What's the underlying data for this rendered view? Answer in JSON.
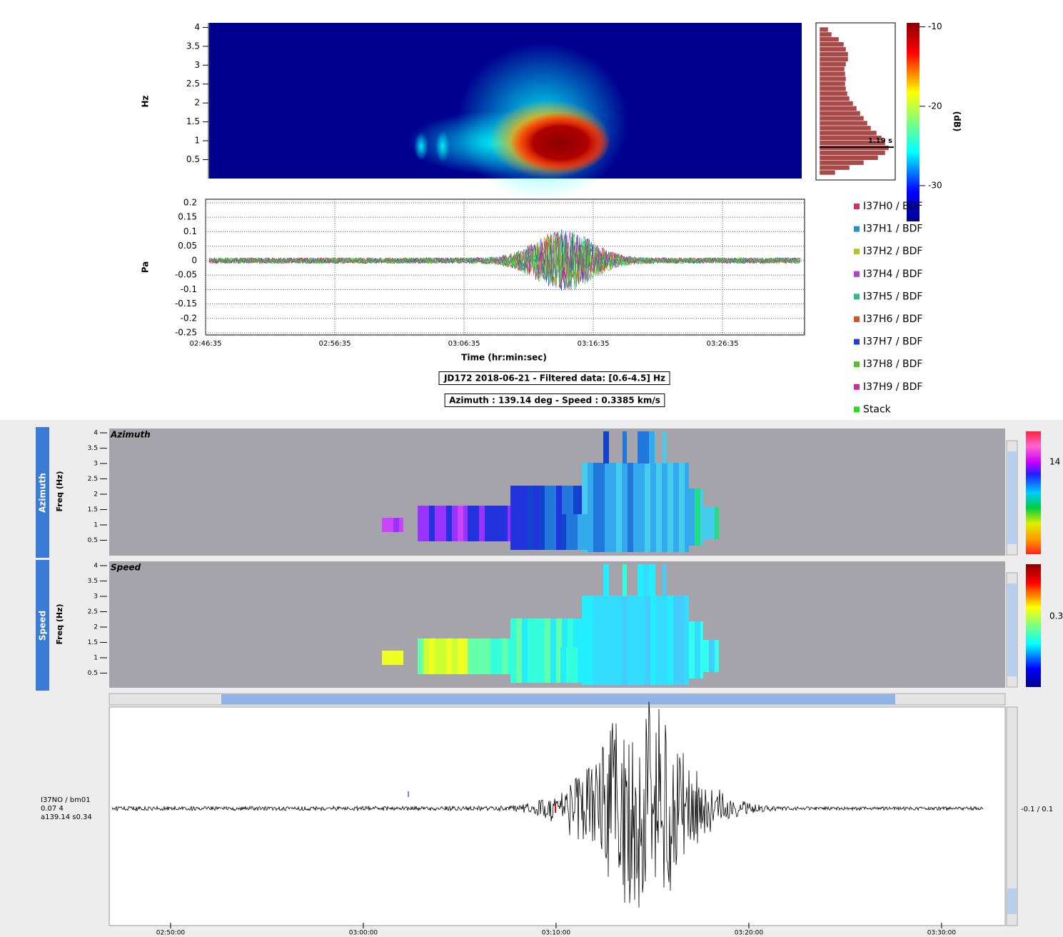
{
  "spectrogram": {
    "ylabel": "Hz",
    "yticks": [
      0.5,
      1,
      1.5,
      2,
      2.5,
      3,
      3.5,
      4
    ],
    "ylim": [
      0,
      4.12
    ]
  },
  "histogram": {
    "values": [
      12,
      17,
      27,
      34,
      37,
      40,
      40,
      37,
      35,
      36,
      37,
      36,
      37,
      39,
      42,
      47,
      52,
      57,
      62,
      67,
      72,
      80,
      87,
      92,
      97,
      92,
      82,
      62,
      42,
      22
    ],
    "xlim": [
      0,
      106
    ],
    "marker": {
      "label": "1.19 s",
      "value": 0.83
    }
  },
  "colorbar": {
    "label": "(dB)",
    "ticks": [
      -10,
      -20,
      -30
    ],
    "lim": [
      -34.5,
      -9.5
    ]
  },
  "waveform": {
    "ylabel": "Pa",
    "xlabel": "Time (hr:min:sec)",
    "grid": true,
    "yticks": [
      0.2,
      0.15,
      0.1,
      0.05,
      0,
      -0.05,
      -0.1,
      -0.15,
      -0.2,
      -0.25
    ],
    "ylim": [
      -0.257,
      0.212
    ],
    "xticks": [
      {
        "value": 10005,
        "label": "02:46:35"
      },
      {
        "value": 10605,
        "label": "02:56:35"
      },
      {
        "value": 11205,
        "label": "03:06:35"
      },
      {
        "value": 11805,
        "label": "03:16:35"
      },
      {
        "value": 12405,
        "label": "03:26:35"
      }
    ],
    "xlim": [
      10005,
      12786
    ]
  },
  "captions": [
    "JD172 2018-06-21 - Filtered data: [0.6-4.5] Hz",
    "Azimuth : 139.14 deg - Speed : 0.3385 km/s"
  ],
  "legend": [
    {
      "name": "I37H0 / BDF",
      "color": "#d2325a"
    },
    {
      "name": "I37H1 / BDF",
      "color": "#2b8fcf"
    },
    {
      "name": "I37H2 / BDF",
      "color": "#b8c22a"
    },
    {
      "name": "I37H4 / BDF",
      "color": "#b43fd0"
    },
    {
      "name": "I37H5 / BDF",
      "color": "#2bc07a"
    },
    {
      "name": "I37H6 / BDF",
      "color": "#d0552b"
    },
    {
      "name": "I37H7 / BDF",
      "color": "#2a3fcf"
    },
    {
      "name": "I37H8 / BDF",
      "color": "#55c02b"
    },
    {
      "name": "I37H9 / BDF",
      "color": "#d02b9a"
    },
    {
      "name": "Stack",
      "color": "#22dd22"
    }
  ],
  "fk_panels": [
    {
      "tab": "Azimuth",
      "axis_label": "Freq (Hz)",
      "title": "Azimuth",
      "yticks": [
        0.5,
        1,
        1.5,
        2,
        2.5,
        3,
        3.5,
        4
      ],
      "ylim": [
        0,
        4.14
      ],
      "colorbar_label": "14"
    },
    {
      "tab": "Speed",
      "axis_label": "Freq (Hz)",
      "title": "Speed",
      "yticks": [
        0.5,
        1,
        1.5,
        2,
        2.5,
        3,
        3.5,
        4
      ],
      "ylim": [
        0,
        4.14
      ],
      "colorbar_label": "0.3"
    }
  ],
  "trace": {
    "station": "I37NO / bm01",
    "line2": "0.07 4",
    "line3": "a139.14 s0.34",
    "scale": "-0.1 / 0.1",
    "xticks": [
      {
        "value": 10200,
        "label": "02:50:00"
      },
      {
        "value": 10800,
        "label": "03:00:00"
      },
      {
        "value": 11400,
        "label": "03:10:00"
      },
      {
        "value": 12000,
        "label": "03:20:00"
      },
      {
        "value": 12600,
        "label": "03:30:00"
      }
    ],
    "xlim": [
      10009,
      12798
    ]
  }
}
